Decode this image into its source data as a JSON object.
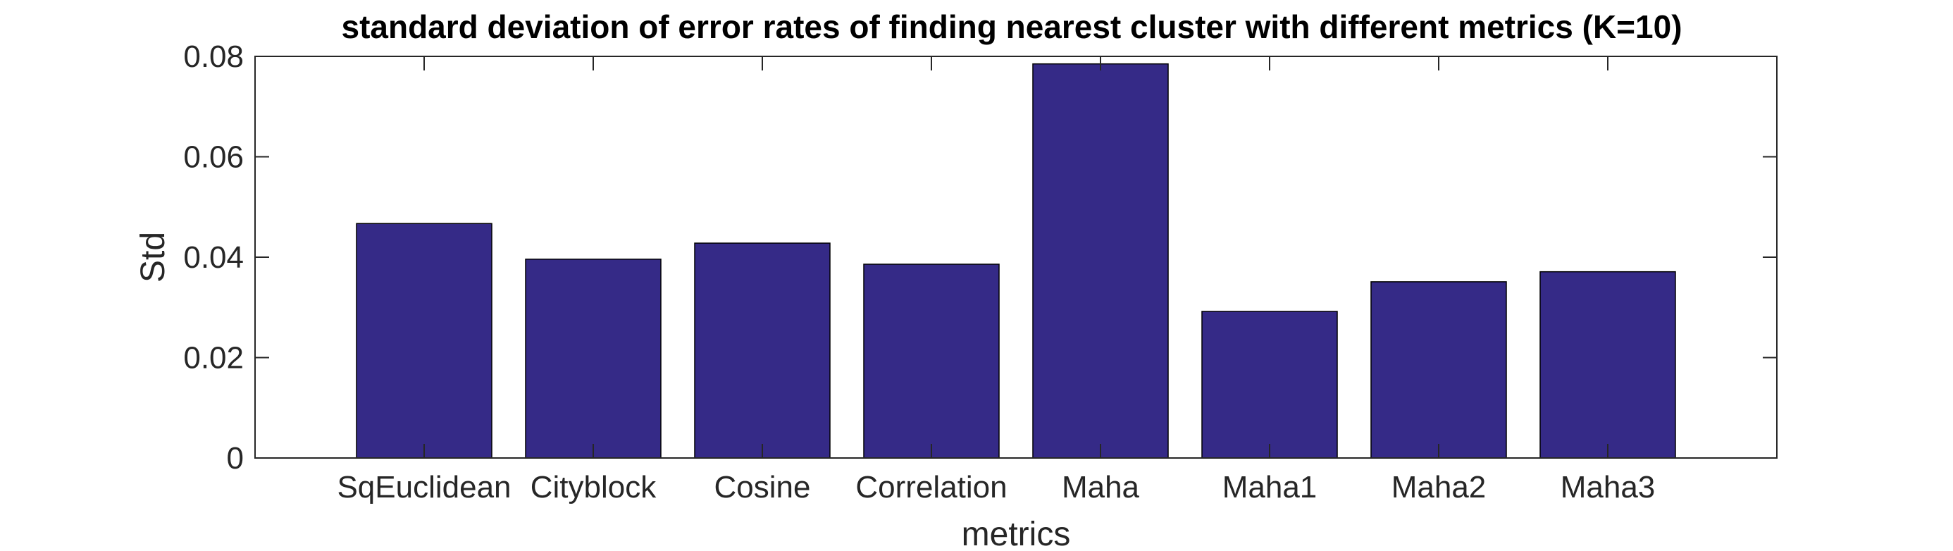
{
  "chart_data": {
    "type": "bar",
    "title": "standard deviation of error rates of finding nearest cluster with different metrics (K=10)",
    "xlabel": "metrics",
    "ylabel": "Std",
    "categories": [
      "SqEuclidean",
      "Cityblock",
      "Cosine",
      "Correlation",
      "Maha",
      "Maha1",
      "Maha2",
      "Maha3"
    ],
    "values": [
      0.0467,
      0.0396,
      0.0428,
      0.0386,
      0.0785,
      0.0292,
      0.0351,
      0.0371
    ],
    "ylim": [
      0,
      0.08
    ],
    "yticks": [
      0,
      0.02,
      0.04,
      0.06,
      0.08
    ],
    "ytick_labels": [
      "0",
      "0.02",
      "0.04",
      "0.06",
      "0.08"
    ],
    "bar_color": "#352a87",
    "grid": false,
    "legend": "none"
  }
}
